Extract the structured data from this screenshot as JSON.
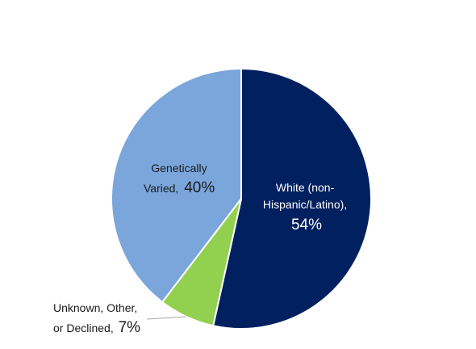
{
  "chart_data": {
    "type": "pie",
    "slices": [
      {
        "label_lines": [
          "White (non-",
          "Hispanic/Latino),"
        ],
        "percent_text": "54%",
        "value": 54,
        "color": "#002060"
      },
      {
        "label_lines": [
          "Unknown, Other,",
          "or Declined,"
        ],
        "percent_text": "7%",
        "value": 7,
        "color": "#92D050"
      },
      {
        "label_lines": [
          "Genetically",
          "Varied,"
        ],
        "percent_text": "40%",
        "value": 40,
        "color": "#7AA6DC"
      }
    ],
    "start_angle": "12 o'clock",
    "direction": "clockwise",
    "legend": "none"
  }
}
